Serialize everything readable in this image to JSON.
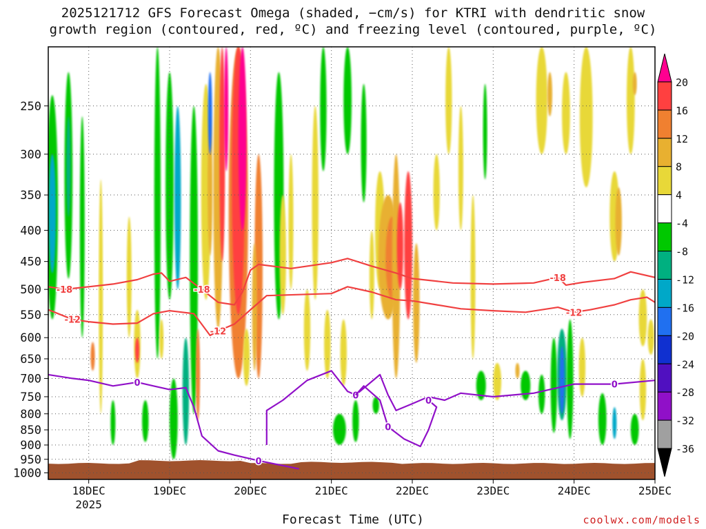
{
  "header": {
    "title_line1": "2025121712 GFS Forecast Omega (shaded, −cm/s) for KTRI with dendritic snow",
    "title_line2": "growth region (contoured, red, ºC) and freezing level (contoured, purple, ºC)"
  },
  "footer": {
    "credit": "coolwx.com/models"
  },
  "chart_data": {
    "type": "heatmap",
    "title": "2025121712 GFS Forecast Omega (shaded, −cm/s) for KTRI with dendritic snow growth region (contoured, red, ºC) and freezing level (contoured, purple, ºC)",
    "xlabel": "Forecast Time (UTC)",
    "ylabel": "",
    "x_ticks": [
      "18DEC",
      "19DEC",
      "20DEC",
      "21DEC",
      "22DEC",
      "23DEC",
      "24DEC",
      "25DEC"
    ],
    "x_tick_sub": {
      "18DEC": "2025"
    },
    "x_range_days": [
      17.5,
      25.0
    ],
    "y_ticks": [
      250,
      300,
      350,
      400,
      450,
      500,
      550,
      600,
      650,
      700,
      750,
      800,
      850,
      900,
      950,
      1000
    ],
    "y_range_hpa": [
      200,
      1025
    ],
    "y_scale": "log-pressure, inverted",
    "grid": true,
    "colorbar": {
      "labels": [
        20,
        16,
        12,
        8,
        4,
        -4,
        -8,
        -12,
        -16,
        -20,
        -24,
        -28,
        -32,
        -36
      ],
      "colors": [
        "#ff0090",
        "#ff4040",
        "#f08030",
        "#e8b030",
        "#e8d838",
        "#ffffff",
        "#00c800",
        "#00b080",
        "#00a8c8",
        "#2070f0",
        "#1030d0",
        "#5010c0",
        "#9010c8",
        "#a0a0a0",
        "#000000"
      ]
    },
    "terrain_color": "#a0522d",
    "red_contours": [
      {
        "label": "-18",
        "points": [
          [
            17.5,
            495
          ],
          [
            17.7,
            500
          ],
          [
            18.0,
            495
          ],
          [
            18.3,
            490
          ],
          [
            18.6,
            482
          ],
          [
            18.8,
            472
          ],
          [
            18.9,
            470
          ],
          [
            19.0,
            485
          ],
          [
            19.2,
            478
          ],
          [
            19.4,
            500
          ],
          [
            19.6,
            525
          ],
          [
            19.8,
            530
          ],
          [
            19.9,
            505
          ],
          [
            20.0,
            465
          ],
          [
            20.1,
            455
          ],
          [
            20.5,
            462
          ],
          [
            21.0,
            452
          ],
          [
            21.2,
            445
          ],
          [
            21.5,
            458
          ],
          [
            21.8,
            470
          ],
          [
            22.0,
            480
          ],
          [
            22.5,
            488
          ],
          [
            23.0,
            490
          ],
          [
            23.5,
            488
          ],
          [
            23.8,
            478
          ],
          [
            23.9,
            492
          ],
          [
            24.1,
            487
          ],
          [
            24.5,
            480
          ],
          [
            24.7,
            468
          ],
          [
            25.0,
            478
          ]
        ]
      },
      {
        "label": "-12",
        "points": [
          [
            17.5,
            540
          ],
          [
            17.8,
            560
          ],
          [
            18.0,
            565
          ],
          [
            18.3,
            570
          ],
          [
            18.6,
            568
          ],
          [
            18.8,
            548
          ],
          [
            19.0,
            542
          ],
          [
            19.3,
            548
          ],
          [
            19.5,
            595
          ],
          [
            19.6,
            585
          ],
          [
            19.8,
            570
          ],
          [
            20.0,
            540
          ],
          [
            20.2,
            512
          ],
          [
            20.6,
            510
          ],
          [
            21.0,
            508
          ],
          [
            21.2,
            495
          ],
          [
            21.5,
            505
          ],
          [
            21.8,
            520
          ],
          [
            22.0,
            522
          ],
          [
            22.3,
            530
          ],
          [
            22.6,
            538
          ],
          [
            23.0,
            542
          ],
          [
            23.4,
            545
          ],
          [
            23.8,
            535
          ],
          [
            24.0,
            545
          ],
          [
            24.2,
            540
          ],
          [
            24.5,
            530
          ],
          [
            24.7,
            520
          ],
          [
            24.9,
            515
          ],
          [
            25.0,
            525
          ]
        ]
      }
    ],
    "purple_contours": [
      {
        "label": "0",
        "points": [
          [
            17.5,
            690
          ],
          [
            17.8,
            700
          ],
          [
            18.0,
            705
          ],
          [
            18.3,
            720
          ],
          [
            18.6,
            710
          ],
          [
            18.8,
            720
          ],
          [
            19.0,
            730
          ],
          [
            19.2,
            725
          ],
          [
            19.3,
            780
          ],
          [
            19.4,
            870
          ],
          [
            19.6,
            920
          ],
          [
            19.8,
            935
          ],
          [
            20.1,
            955
          ],
          [
            20.6,
            985
          ]
        ]
      },
      {
        "label": "0",
        "points": [
          [
            20.2,
            900
          ],
          [
            20.2,
            790
          ],
          [
            20.4,
            760
          ],
          [
            20.7,
            705
          ],
          [
            21.0,
            680
          ],
          [
            21.2,
            735
          ],
          [
            21.3,
            745
          ],
          [
            21.6,
            690
          ],
          [
            21.7,
            745
          ],
          [
            21.8,
            790
          ],
          [
            22.0,
            770
          ],
          [
            22.2,
            750
          ],
          [
            22.4,
            760
          ],
          [
            22.6,
            740
          ],
          [
            23.0,
            750
          ],
          [
            23.5,
            740
          ],
          [
            24.0,
            715
          ],
          [
            24.5,
            715
          ],
          [
            25.0,
            705
          ]
        ]
      },
      {
        "label": "0",
        "points": [
          [
            21.3,
            745
          ],
          [
            21.4,
            720
          ],
          [
            21.6,
            760
          ],
          [
            21.7,
            840
          ],
          [
            21.9,
            880
          ],
          [
            22.1,
            905
          ],
          [
            22.2,
            850
          ],
          [
            22.3,
            780
          ],
          [
            22.2,
            760
          ]
        ]
      }
    ]
  }
}
